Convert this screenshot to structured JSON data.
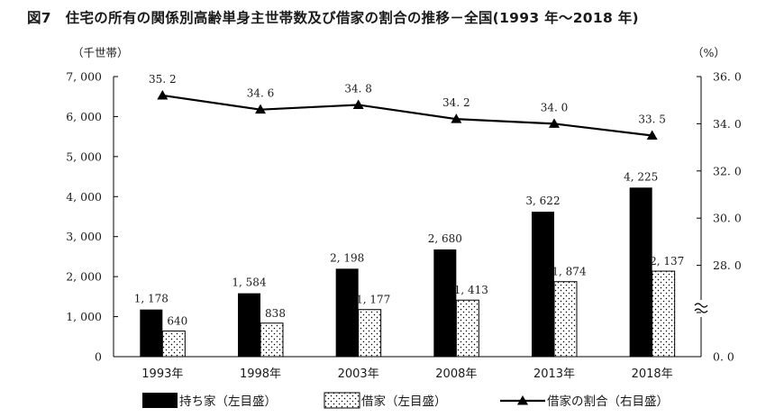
{
  "title": "図7　住宅の所有の関係別高齢単身主世帯数及び借家の割合の推移－全国(1993 年～2018 年)",
  "chart_data": {
    "type": "bar+line",
    "categories": [
      "1993年",
      "1998年",
      "2003年",
      "2008年",
      "2013年",
      "2018年"
    ],
    "series": [
      {
        "name": "持ち家（左目盛）",
        "type": "bar",
        "axis": "left",
        "color": "#000000",
        "values": [
          1178,
          1584,
          2198,
          2680,
          3622,
          4225
        ],
        "labels": [
          "1, 178",
          "1, 584",
          "2, 198",
          "2, 680",
          "3, 622",
          "4, 225"
        ]
      },
      {
        "name": "借家（左目盛）",
        "type": "bar",
        "axis": "left",
        "pattern": "dots",
        "values": [
          640,
          838,
          1177,
          1413,
          1874,
          2137
        ],
        "labels": [
          "640",
          "838",
          "1, 177",
          "1, 413",
          "1, 874",
          "2, 137"
        ]
      },
      {
        "name": "借家の割合（右目盛）",
        "type": "line",
        "axis": "right",
        "marker": "triangle",
        "color": "#000000",
        "values": [
          35.2,
          34.6,
          34.8,
          34.2,
          34.0,
          33.5
        ],
        "labels": [
          "35. 2",
          "34. 6",
          "34. 8",
          "34. 2",
          "34. 0",
          "33. 5"
        ]
      }
    ],
    "left_axis": {
      "unit": "（千世帯）",
      "ylim": [
        0,
        7000
      ],
      "ticks": [
        0,
        1000,
        2000,
        3000,
        4000,
        5000,
        6000,
        7000
      ],
      "tick_labels": [
        "0",
        "1, 000",
        "2, 000",
        "3, 000",
        "4, 000",
        "5, 000",
        "6, 000",
        "7, 000"
      ]
    },
    "right_axis": {
      "unit": "（%）",
      "ylim": [
        26.0,
        36.0
      ],
      "axis_break": true,
      "ticks": [
        0.0,
        28.0,
        30.0,
        32.0,
        34.0,
        36.0
      ],
      "tick_labels": [
        "0. 0",
        "28. 0",
        "30. 0",
        "32. 0",
        "34. 0",
        "36. 0"
      ]
    },
    "legend_position": "bottom",
    "grid": false
  }
}
